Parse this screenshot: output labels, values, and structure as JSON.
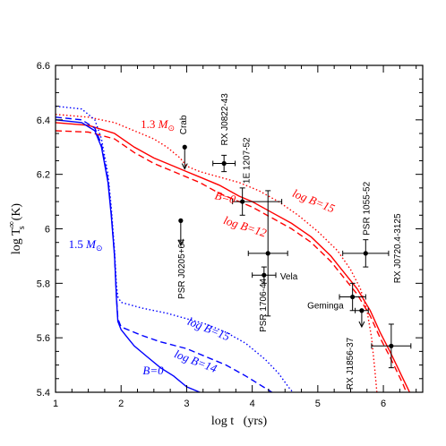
{
  "chart_data": {
    "type": "line",
    "xlabel": "log t   (yrs)",
    "ylabel": "log T",
    "ylabel_sup": "∞",
    "ylabel_sub": "s",
    "ylabel_unit": "(K)",
    "xlim": [
      1,
      6.6
    ],
    "ylim": [
      5.4,
      6.6
    ],
    "x_ticks": [
      1,
      2,
      3,
      4,
      5,
      6
    ],
    "y_ticks": [
      5.4,
      5.6,
      5.8,
      6,
      6.2,
      6.4,
      6.6
    ],
    "x_tick_labels": [
      "1",
      "2",
      "3",
      "4",
      "5",
      "6"
    ],
    "y_tick_labels": [
      "5.4",
      "5.6",
      "5.8",
      "6",
      "6.2",
      "6.4",
      "6.6"
    ],
    "colors": {
      "red": "#ff0000",
      "blue": "#0000ff",
      "black": "#000000"
    },
    "series": [
      {
        "color": "red",
        "style": "solid",
        "x": [
          1.0,
          1.5,
          1.9,
          2.2,
          2.5,
          2.8,
          3.0,
          3.2,
          3.5,
          3.8,
          4.0,
          4.3,
          4.6,
          4.9,
          5.2,
          5.4,
          5.6,
          5.8,
          5.95,
          6.1,
          6.2,
          6.3,
          6.4
        ],
        "y": [
          6.39,
          6.38,
          6.35,
          6.3,
          6.26,
          6.23,
          6.21,
          6.19,
          6.16,
          6.12,
          6.1,
          6.06,
          6.02,
          5.97,
          5.9,
          5.84,
          5.78,
          5.7,
          5.62,
          5.55,
          5.5,
          5.45,
          5.4
        ]
      },
      {
        "color": "red",
        "style": "dashed",
        "x": [
          1.0,
          1.5,
          1.9,
          2.2,
          2.5,
          2.8,
          3.0,
          3.2,
          3.5,
          3.8,
          4.0,
          4.3,
          4.6,
          4.9,
          5.2,
          5.4,
          5.6,
          5.8,
          5.95,
          6.1,
          6.2,
          6.3,
          6.35
        ],
        "y": [
          6.36,
          6.355,
          6.33,
          6.28,
          6.24,
          6.21,
          6.19,
          6.17,
          6.13,
          6.1,
          6.08,
          6.04,
          6.0,
          5.95,
          5.88,
          5.82,
          5.76,
          5.68,
          5.6,
          5.53,
          5.48,
          5.43,
          5.4
        ]
      },
      {
        "color": "red",
        "style": "dotted",
        "x": [
          1.0,
          1.5,
          1.9,
          2.2,
          2.5,
          2.7,
          2.9,
          3.0,
          3.2,
          3.5,
          3.8,
          4.1,
          4.4,
          4.7,
          5.0,
          5.3,
          5.5,
          5.65,
          5.75,
          5.82,
          5.87,
          5.9
        ],
        "y": [
          6.42,
          6.41,
          6.39,
          6.36,
          6.33,
          6.3,
          6.26,
          6.23,
          6.21,
          6.19,
          6.17,
          6.14,
          6.1,
          6.05,
          5.99,
          5.92,
          5.85,
          5.78,
          5.7,
          5.6,
          5.48,
          5.4
        ]
      },
      {
        "color": "blue",
        "style": "solid",
        "x": [
          1.0,
          1.4,
          1.6,
          1.7,
          1.8,
          1.85,
          1.9,
          1.93,
          1.95,
          2.0,
          2.1,
          2.2,
          2.4,
          2.6,
          2.8,
          3.0,
          3.2
        ],
        "y": [
          6.4,
          6.39,
          6.36,
          6.3,
          6.17,
          6.05,
          5.9,
          5.74,
          5.66,
          5.63,
          5.6,
          5.57,
          5.53,
          5.49,
          5.46,
          5.42,
          5.4
        ]
      },
      {
        "color": "blue",
        "style": "dashed",
        "x": [
          1.0,
          1.4,
          1.6,
          1.7,
          1.8,
          1.85,
          1.9,
          1.93,
          1.95,
          2.0,
          2.3,
          2.6,
          3.0,
          3.3,
          3.6,
          3.9,
          4.1,
          4.3
        ],
        "y": [
          6.41,
          6.4,
          6.37,
          6.31,
          6.18,
          6.06,
          5.9,
          5.75,
          5.67,
          5.64,
          5.61,
          5.585,
          5.56,
          5.53,
          5.5,
          5.46,
          5.43,
          5.4
        ]
      },
      {
        "color": "blue",
        "style": "dotted",
        "x": [
          1.0,
          1.4,
          1.6,
          1.7,
          1.8,
          1.85,
          1.9,
          1.93,
          1.95,
          2.0,
          2.3,
          2.7,
          3.0,
          3.3,
          3.6,
          3.9,
          4.2,
          4.4,
          4.55,
          4.62
        ],
        "y": [
          6.45,
          6.44,
          6.4,
          6.33,
          6.2,
          6.08,
          5.92,
          5.79,
          5.75,
          5.73,
          5.71,
          5.69,
          5.67,
          5.65,
          5.62,
          5.58,
          5.52,
          5.47,
          5.42,
          5.4
        ]
      }
    ],
    "observations": [
      {
        "name": "Crab",
        "x": 2.97,
        "y": 6.3,
        "upper_limit": true,
        "ylo": 6.22
      },
      {
        "name": "RX J0822-43",
        "x": 3.57,
        "y": 6.24,
        "xerr": [
          0.17,
          0.17
        ],
        "yerr": [
          0.03,
          0.03
        ]
      },
      {
        "name": "1E 1207-52",
        "x": 3.85,
        "y": 6.1,
        "xerr": [
          0.15,
          0.6
        ],
        "yerr": [
          0.05,
          0.05
        ]
      },
      {
        "name": "PSR J0205+64",
        "x": 2.91,
        "y": 6.03,
        "upper_limit": true,
        "ylo": 5.94
      },
      {
        "name": "Vela",
        "x": 4.18,
        "y": 5.83,
        "xerr": [
          0.18,
          0.18
        ],
        "yerr": [
          0.03,
          0.03
        ]
      },
      {
        "name": "PSR 1706-44",
        "x": 4.24,
        "y": 5.91,
        "xerr": [
          0.3,
          0.3
        ],
        "yerr": [
          0.23,
          0.23
        ]
      },
      {
        "name": "PSR 1055-52",
        "x": 5.73,
        "y": 5.91,
        "xerr": [
          0.35,
          0.35
        ],
        "yerr": [
          0.05,
          0.05
        ]
      },
      {
        "name": "Geminga",
        "x": 5.53,
        "y": 5.75,
        "xerr": [
          0.2,
          0.2
        ],
        "yerr": [
          0.05,
          0.05
        ]
      },
      {
        "name": "RX J1856-37",
        "x": 5.67,
        "y": 5.7,
        "xerr": [
          0.1,
          0.1
        ],
        "upper_limit": true,
        "ylo": 5.64
      },
      {
        "name": "RX J0720.4-3125",
        "x": 6.12,
        "y": 5.57,
        "xerr": [
          0.3,
          0.3
        ],
        "yerr": [
          0.08,
          0.08
        ]
      }
    ],
    "annotations": {
      "mass_13": "1.3",
      "mass_15": "1.5",
      "mass_unit": "M",
      "mass_unit_sub": "⊙",
      "red_b0": "B=0",
      "red_b15": "log B=15",
      "red_b12": "log B=12",
      "blue_b15": "log B=15",
      "blue_b14": "log B=14",
      "blue_b0": "B=0"
    }
  }
}
